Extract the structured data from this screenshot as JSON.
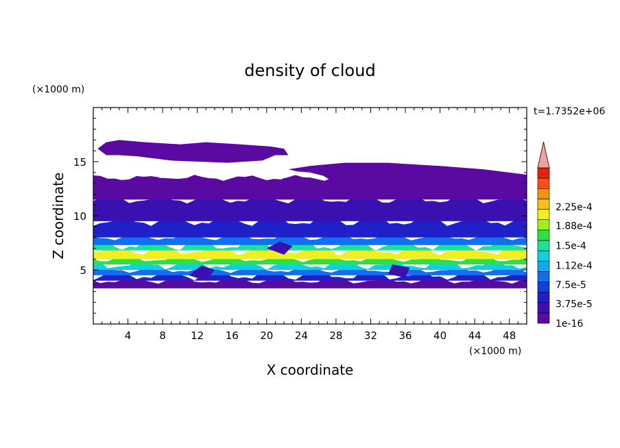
{
  "chart_data": {
    "type": "heatmap",
    "title": "density of cloud",
    "xlabel": "X coordinate",
    "ylabel": "Z coordinate",
    "x_unit": "(×1000 m)",
    "y_unit": "(×1000 m)",
    "time_label": "t=1.7352e+06",
    "xlim": [
      0,
      50
    ],
    "ylim": [
      0,
      20
    ],
    "x_ticks": [
      "4",
      "8",
      "12",
      "16",
      "20",
      "24",
      "28",
      "32",
      "36",
      "40",
      "44",
      "48"
    ],
    "y_ticks": [
      "5",
      "10",
      "15"
    ],
    "colorbar": {
      "labels": [
        "2.25e-4",
        "1.88e-4",
        "1.5e-4",
        "1.12e-4",
        "7.5e-5",
        "3.75e-5",
        "1e-16"
      ],
      "label_levels": [
        0.000225,
        0.000188,
        0.00015,
        0.000112,
        7.5e-05,
        3.75e-05,
        0
      ],
      "colors": [
        "#5a0aa0",
        "#3a10b0",
        "#2020c8",
        "#1040e0",
        "#1070f0",
        "#10a8f0",
        "#10d0e0",
        "#20e0a0",
        "#30e040",
        "#a0f020",
        "#f0f020",
        "#f8c010",
        "#f89010",
        "#f85010",
        "#e82010"
      ],
      "extend_color": "#f4a0a0"
    },
    "bands": [
      {
        "zmin": 3.3,
        "zmax": 4.0,
        "level": 0
      },
      {
        "zmin": 4.0,
        "zmax": 4.5,
        "level": 2
      },
      {
        "zmin": 4.5,
        "zmax": 5.0,
        "level": 4
      },
      {
        "zmin": 5.0,
        "zmax": 5.5,
        "level": 6
      },
      {
        "zmin": 5.5,
        "zmax": 6.0,
        "level": 8
      },
      {
        "zmin": 6.0,
        "zmax": 6.8,
        "level": 10
      },
      {
        "zmin": 6.8,
        "zmax": 7.3,
        "level": 7
      },
      {
        "zmin": 7.3,
        "zmax": 8.0,
        "level": 4
      },
      {
        "zmin": 8.0,
        "zmax": 9.5,
        "level": 2
      },
      {
        "zmin": 9.5,
        "zmax": 11.5,
        "level": 1
      },
      {
        "zmin": 11.5,
        "zmax": 13.5,
        "level": 0
      }
    ],
    "cloud_patches": [
      {
        "x": [
          0.5,
          1.5,
          3,
          6,
          10,
          13,
          17,
          20.5,
          22,
          22.5,
          21,
          19.5,
          15.5,
          9,
          5,
          3,
          1.5,
          0.5
        ],
        "z": [
          16.2,
          16.8,
          17.0,
          16.8,
          16.6,
          16.8,
          16.6,
          16.4,
          16.2,
          15.6,
          15.6,
          15.1,
          14.9,
          15.1,
          15.5,
          15.6,
          15.6,
          16.2
        ],
        "level": 0
      },
      {
        "x": [
          22.5,
          25,
          29,
          34,
          40,
          45,
          50,
          50,
          39,
          33,
          30.5,
          29.5,
          28,
          26.5,
          25,
          23.5,
          22.5
        ],
        "z": [
          14.3,
          14.6,
          14.9,
          14.9,
          14.6,
          14.3,
          13.8,
          13.0,
          13.0,
          12.8,
          11.5,
          12.0,
          13.0,
          13.7,
          14.0,
          14.1,
          14.3
        ],
        "level": 0
      },
      {
        "x": [
          0,
          3,
          8,
          12,
          14,
          15,
          16,
          20,
          21,
          22,
          24,
          26,
          28,
          30,
          30,
          0
        ],
        "z": [
          13.5,
          13.3,
          13.5,
          13.3,
          12.8,
          12.2,
          12.1,
          12.0,
          12.8,
          13.5,
          13.3,
          12.8,
          12.0,
          12.0,
          11.5,
          11.5
        ],
        "level": 0
      },
      {
        "x": [
          11,
          13,
          14,
          12.5,
          11
        ],
        "z": [
          4.5,
          4.0,
          5.0,
          5.4,
          4.5
        ],
        "level": 1
      },
      {
        "x": [
          20,
          22,
          23,
          21.5,
          20
        ],
        "z": [
          7.0,
          6.4,
          7.2,
          7.6,
          7.0
        ],
        "level": 1
      },
      {
        "x": [
          34,
          36,
          36.5,
          34.5,
          34
        ],
        "z": [
          4.6,
          4.3,
          5.2,
          5.5,
          4.6
        ],
        "level": 1
      }
    ]
  }
}
